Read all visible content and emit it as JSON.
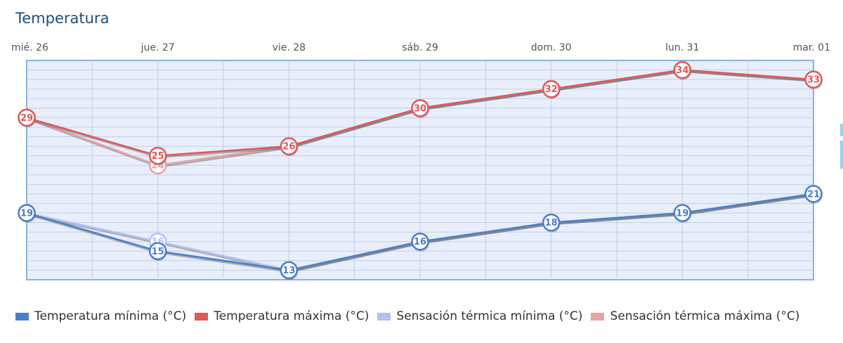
{
  "title": "Temperatura",
  "chart_data": {
    "type": "line",
    "title": "Temperatura",
    "categories": [
      "mié. 26",
      "jue. 27",
      "vie. 28",
      "sáb. 29",
      "dom. 30",
      "lun. 31",
      "mar. 01"
    ],
    "ylim": [
      12,
      35
    ],
    "grid": true,
    "legend_position": "bottom-left",
    "series": [
      {
        "name": "Sensación térmica máxima (°C)",
        "values": [
          29,
          24,
          26,
          30,
          32,
          34,
          33
        ],
        "color": "#e8a2a6",
        "labelled": false,
        "point_labels": [
          "",
          "24",
          "",
          "",
          "",
          "",
          ""
        ]
      },
      {
        "name": "Sensación térmica mínima (°C)",
        "values": [
          19,
          16,
          13,
          16,
          18,
          19,
          21
        ],
        "color": "#b3c0f2",
        "labelled": false,
        "point_labels": [
          "",
          "16",
          "",
          "",
          "",
          "",
          ""
        ]
      },
      {
        "name": "Temperatura máxima (°C)",
        "values": [
          29,
          25,
          26,
          30,
          32,
          34,
          33
        ],
        "color": "#e05858",
        "labelled": true
      },
      {
        "name": "Temperatura mínima (°C)",
        "values": [
          19,
          15,
          13,
          16,
          18,
          19,
          21
        ],
        "color": "#4a7fc9",
        "labelled": true
      }
    ],
    "legend": [
      {
        "name": "Temperatura mínima (°C)",
        "color": "#4a7fc9"
      },
      {
        "name": "Temperatura máxima (°C)",
        "color": "#e05858"
      },
      {
        "name": "Sensación térmica mínima (°C)",
        "color": "#b3c0f2"
      },
      {
        "name": "Sensación térmica máxima (°C)",
        "color": "#e8a2a6"
      }
    ]
  }
}
